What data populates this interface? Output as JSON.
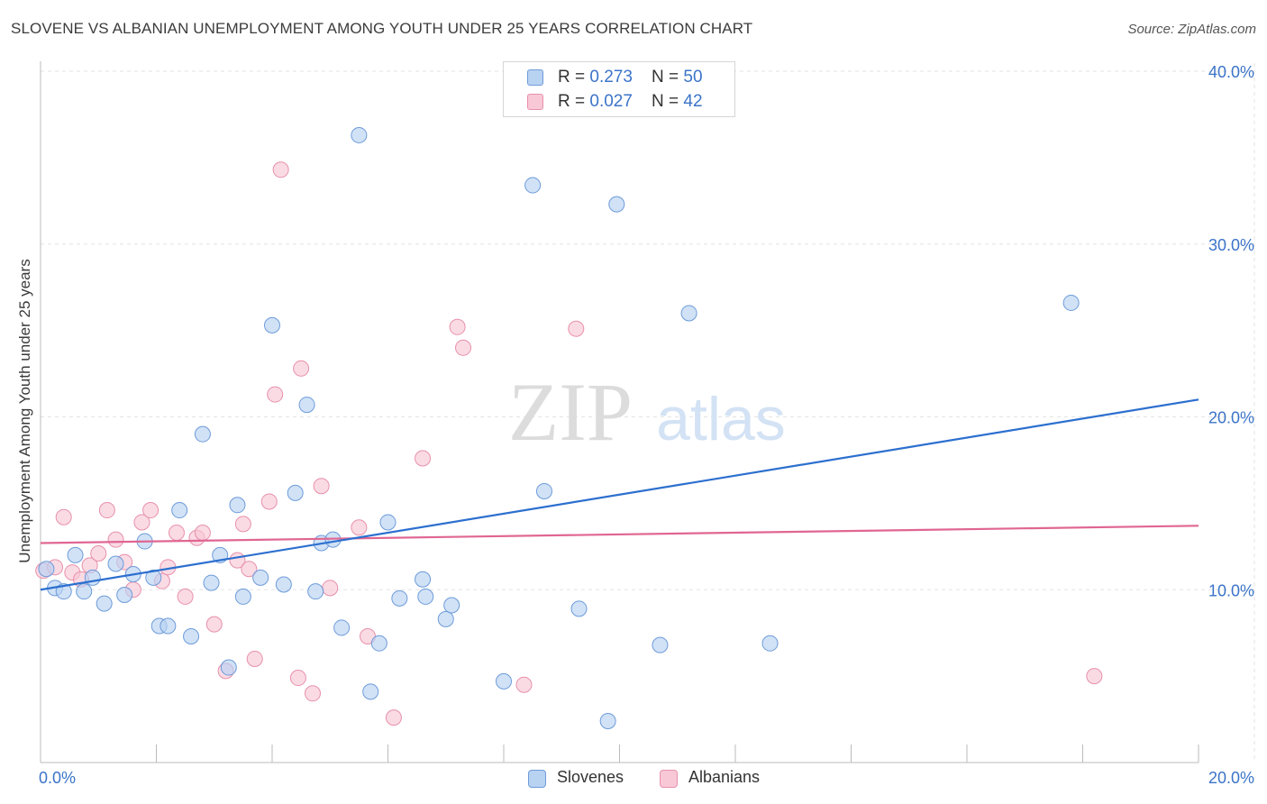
{
  "header": {
    "title": "SLOVENE VS ALBANIAN UNEMPLOYMENT AMONG YOUTH UNDER 25 YEARS CORRELATION CHART",
    "source": "Source: ZipAtlas.com"
  },
  "watermark": {
    "zip": "ZIP",
    "atlas": "atlas"
  },
  "legend": {
    "rows": [
      {
        "r_label": "R = ",
        "r_value": "0.273",
        "n_label": "N = ",
        "n_value": "50"
      },
      {
        "r_label": "R = ",
        "r_value": "0.027",
        "n_label": "N = ",
        "n_value": "42"
      }
    ]
  },
  "bottom_legend": {
    "items": [
      "Slovenes",
      "Albanians"
    ]
  },
  "colors": {
    "slovenes_fill": "#b8d2f2",
    "slovenes_stroke": "#6d9bd9",
    "slovenes_line": "#2c6fcf",
    "albanians_fill": "#f8c8d6",
    "albanians_stroke": "#e890ab",
    "albanians_line": "#e06692",
    "tick_label": "#3b74c8",
    "grid": "#e3e3e3"
  },
  "chart_data": {
    "type": "scatter",
    "title": "SLOVENE VS ALBANIAN UNEMPLOYMENT AMONG YOUTH UNDER 25 YEARS CORRELATION CHART",
    "xlabel": "",
    "ylabel": "Unemployment Among Youth under 25 years",
    "xlim": [
      0,
      20
    ],
    "ylim": [
      0,
      40
    ],
    "x_tick_labels": [
      "0.0%",
      "20.0%"
    ],
    "y_ticks": [
      10,
      20,
      30,
      40
    ],
    "y_tick_labels": [
      "10.0%",
      "20.0%",
      "30.0%",
      "40.0%"
    ],
    "grid": true,
    "legend_position": "top-center",
    "series": [
      {
        "name": "Slovenes",
        "r": 0.273,
        "n": 50,
        "trend": {
          "x": [
            0,
            20
          ],
          "y": [
            10.0,
            21.0
          ]
        },
        "points": [
          [
            0.1,
            11.2
          ],
          [
            0.25,
            10.1
          ],
          [
            0.4,
            9.9
          ],
          [
            0.6,
            12.0
          ],
          [
            0.75,
            9.9
          ],
          [
            0.9,
            10.7
          ],
          [
            1.1,
            9.2
          ],
          [
            1.3,
            11.5
          ],
          [
            1.45,
            9.7
          ],
          [
            1.6,
            10.9
          ],
          [
            1.8,
            12.8
          ],
          [
            1.95,
            10.7
          ],
          [
            2.05,
            7.9
          ],
          [
            2.2,
            7.9
          ],
          [
            2.4,
            14.6
          ],
          [
            2.6,
            7.3
          ],
          [
            2.8,
            19.0
          ],
          [
            2.95,
            10.4
          ],
          [
            3.1,
            12.0
          ],
          [
            3.25,
            5.5
          ],
          [
            3.4,
            14.9
          ],
          [
            3.5,
            9.6
          ],
          [
            3.8,
            10.7
          ],
          [
            4.0,
            25.3
          ],
          [
            4.2,
            10.3
          ],
          [
            4.4,
            15.6
          ],
          [
            4.6,
            20.7
          ],
          [
            4.75,
            9.9
          ],
          [
            4.85,
            12.7
          ],
          [
            5.05,
            12.9
          ],
          [
            5.2,
            7.8
          ],
          [
            5.5,
            36.3
          ],
          [
            5.7,
            4.1
          ],
          [
            5.85,
            6.9
          ],
          [
            6.0,
            13.9
          ],
          [
            6.2,
            9.5
          ],
          [
            6.6,
            10.6
          ],
          [
            6.65,
            9.6
          ],
          [
            7.0,
            8.3
          ],
          [
            7.1,
            9.1
          ],
          [
            8.0,
            4.7
          ],
          [
            8.5,
            33.4
          ],
          [
            8.7,
            15.7
          ],
          [
            9.3,
            8.9
          ],
          [
            9.8,
            2.4
          ],
          [
            9.95,
            32.3
          ],
          [
            10.7,
            6.8
          ],
          [
            11.2,
            26.0
          ],
          [
            12.6,
            6.9
          ],
          [
            17.8,
            26.6
          ]
        ]
      },
      {
        "name": "Albanians",
        "r": 0.027,
        "n": 42,
        "trend": {
          "x": [
            0,
            20
          ],
          "y": [
            12.7,
            13.7
          ]
        },
        "points": [
          [
            0.05,
            11.1
          ],
          [
            0.25,
            11.3
          ],
          [
            0.4,
            14.2
          ],
          [
            0.55,
            11.0
          ],
          [
            0.7,
            10.6
          ],
          [
            0.85,
            11.4
          ],
          [
            1.0,
            12.1
          ],
          [
            1.15,
            14.6
          ],
          [
            1.3,
            12.9
          ],
          [
            1.45,
            11.6
          ],
          [
            1.6,
            10.0
          ],
          [
            1.75,
            13.9
          ],
          [
            1.9,
            14.6
          ],
          [
            2.1,
            10.5
          ],
          [
            2.2,
            11.3
          ],
          [
            2.35,
            13.3
          ],
          [
            2.5,
            9.6
          ],
          [
            2.7,
            13.0
          ],
          [
            2.8,
            13.3
          ],
          [
            3.0,
            8.0
          ],
          [
            3.2,
            5.3
          ],
          [
            3.4,
            11.7
          ],
          [
            3.5,
            13.8
          ],
          [
            3.6,
            11.2
          ],
          [
            3.7,
            6.0
          ],
          [
            3.95,
            15.1
          ],
          [
            4.05,
            21.3
          ],
          [
            4.15,
            34.3
          ],
          [
            4.45,
            4.9
          ],
          [
            4.5,
            22.8
          ],
          [
            4.7,
            4.0
          ],
          [
            4.85,
            16.0
          ],
          [
            5.0,
            10.1
          ],
          [
            5.5,
            13.6
          ],
          [
            5.65,
            7.3
          ],
          [
            6.1,
            2.6
          ],
          [
            6.6,
            17.6
          ],
          [
            7.2,
            25.2
          ],
          [
            7.3,
            24.0
          ],
          [
            8.35,
            4.5
          ],
          [
            9.25,
            25.1
          ],
          [
            18.2,
            5.0
          ]
        ]
      }
    ]
  }
}
